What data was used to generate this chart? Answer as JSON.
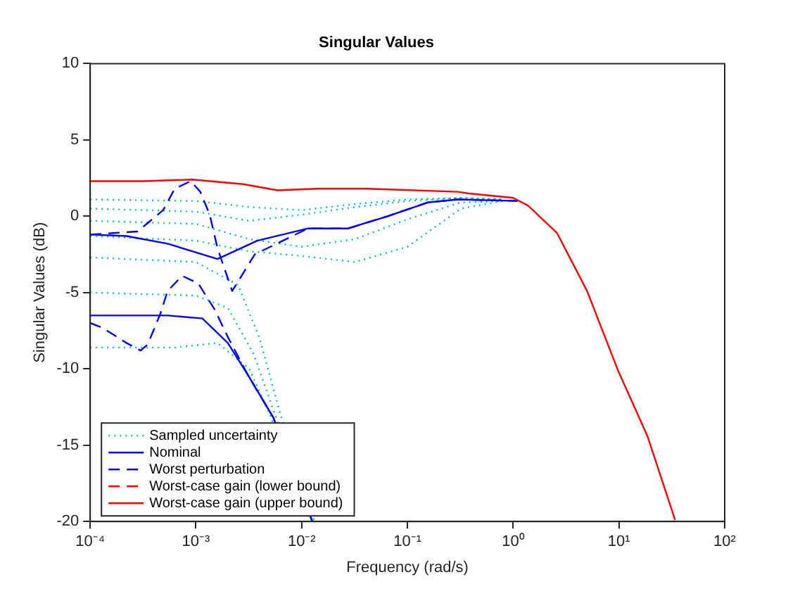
{
  "chart_data": {
    "type": "line",
    "title": "Singular Values",
    "xlabel": "Frequency (rad/s)",
    "ylabel": "Singular Values (dB)",
    "log": "x",
    "grid": false,
    "legend": "bottom left",
    "marker": "none",
    "xlim": [
      0.0001,
      100
    ],
    "xticks": [
      {
        "value": 0.0001,
        "label": "10⁻⁴"
      },
      {
        "value": 0.001,
        "label": "10⁻³"
      },
      {
        "value": 0.01,
        "label": "10⁻²"
      },
      {
        "value": 0.1,
        "label": "10⁻¹"
      },
      {
        "value": 1,
        "label": "10⁰"
      },
      {
        "value": 10,
        "label": "10¹"
      },
      {
        "value": 100,
        "label": "10²"
      }
    ],
    "ylim": [
      -20,
      10
    ],
    "yticks": [
      -20,
      -15,
      -10,
      -5,
      0,
      5,
      10
    ],
    "series": [
      {
        "name": "Sampled uncertainty",
        "color": "#00bfbf",
        "line_style": "dotted",
        "x": [
          0.0001,
          0.001,
          0.0032,
          0.01,
          0.032,
          0.1,
          0.32,
          0.8
        ],
        "values": [
          1.1,
          1.0,
          0.6,
          0.4,
          0.8,
          1.1,
          1.2,
          1.1
        ]
      },
      {
        "color": "#00bfbf",
        "line_style": "dotted",
        "x": [
          0.0001,
          0.001,
          0.0032,
          0.01,
          0.032,
          0.1,
          0.32,
          0.8
        ],
        "values": [
          0.5,
          0.3,
          -0.3,
          0.1,
          0.6,
          1.0,
          1.2,
          1.1
        ]
      },
      {
        "color": "#00bfbf",
        "line_style": "dotted",
        "x": [
          0.0001,
          0.001,
          0.0032,
          0.01,
          0.032,
          0.1,
          0.32,
          0.8
        ],
        "values": [
          -0.3,
          -0.5,
          -1.5,
          -2.0,
          -1.5,
          -0.2,
          0.9,
          1.0
        ]
      },
      {
        "color": "#00bfbf",
        "line_style": "dotted",
        "x": [
          0.0001,
          0.001,
          0.0032,
          0.01,
          0.032,
          0.1,
          0.32,
          0.8
        ],
        "values": [
          -1.3,
          -1.6,
          -2.3,
          -2.6,
          -3.0,
          -2.0,
          0.5,
          1.0
        ]
      },
      {
        "color": "#00bfbf",
        "line_style": "dotted",
        "x": [
          0.0001,
          0.001,
          0.0025,
          0.004,
          0.0063,
          0.0132
        ],
        "values": [
          -2.7,
          -3.0,
          -4.5,
          -8,
          -13,
          -20
        ]
      },
      {
        "color": "#00bfbf",
        "line_style": "dotted",
        "x": [
          0.0001,
          0.001,
          0.002,
          0.0035,
          0.0056,
          0.0126
        ],
        "values": [
          -5.0,
          -5.2,
          -6,
          -9,
          -13,
          -20
        ]
      },
      {
        "color": "#00bfbf",
        "line_style": "dotted",
        "x": [
          0.0001,
          0.00063,
          0.0016,
          0.0032,
          0.005,
          0.012
        ],
        "values": [
          -8.6,
          -8.6,
          -8.3,
          -10,
          -13,
          -20
        ]
      },
      {
        "name": "Nominal",
        "color": "#0000ff",
        "line_style": "solid",
        "x": [
          0.0001,
          0.00022,
          0.00054,
          0.0016,
          0.0038,
          0.0115,
          0.0275,
          0.065,
          0.155,
          0.3,
          1.1
        ],
        "values": [
          -1.2,
          -1.3,
          -1.8,
          -2.8,
          -1.6,
          -0.8,
          -0.8,
          0,
          0.9,
          1.1,
          1.0
        ]
      },
      {
        "color": "#0000ff",
        "line_style": "solid",
        "x": [
          0.0001,
          0.00054,
          0.00115,
          0.002,
          0.0031,
          0.0054,
          0.0126
        ],
        "values": [
          -6.5,
          -6.5,
          -6.7,
          -8.3,
          -10.4,
          -13.2,
          -20
        ]
      },
      {
        "name": "Worst perturbation",
        "color": "#0000ff",
        "line_style": "dashed",
        "x": [
          0.0001,
          0.00028,
          0.00049,
          0.00063,
          0.00089,
          0.0011,
          0.00135,
          0.0016,
          0.0022,
          0.0036,
          0.0115,
          0.0275,
          0.065,
          0.155,
          0.3,
          1.1
        ],
        "values": [
          -1.2,
          -1.0,
          0.4,
          1.8,
          2.3,
          1.6,
          0.1,
          -2.1,
          -4.9,
          -2.5,
          -0.8,
          -0.8,
          0,
          0.9,
          1.1,
          1.0
        ]
      },
      {
        "color": "#0000ff",
        "line_style": "dashed",
        "x": [
          0.0001,
          0.00013,
          0.00022,
          0.0003,
          0.00035,
          0.00046,
          0.00054,
          0.00074,
          0.00105,
          0.0015,
          0.002,
          0.0031,
          0.0054,
          0.0126
        ],
        "values": [
          -7.0,
          -7.3,
          -8.3,
          -8.8,
          -8.4,
          -6.4,
          -4.9,
          -3.9,
          -4.4,
          -6.1,
          -7.9,
          -10.4,
          -13.2,
          -20
        ]
      },
      {
        "name": "Worst-case gain (lower bound)",
        "color": "#ff0000",
        "line_style": "dashed"
      },
      {
        "name": "Worst-case gain (upper bound)",
        "color": "#ff0000",
        "line_style": "solid",
        "x": [
          0.0001,
          0.00032,
          0.00093,
          0.0028,
          0.0059,
          0.014,
          0.042,
          0.3,
          0.37,
          1.0,
          1.38,
          2.6,
          5,
          9.8,
          18.6,
          34
        ],
        "values": [
          2.3,
          2.3,
          2.4,
          2.1,
          1.7,
          1.8,
          1.8,
          1.6,
          1.5,
          1.2,
          0.7,
          -1.1,
          -4.9,
          -10.1,
          -14.4,
          -19.9
        ]
      }
    ]
  }
}
